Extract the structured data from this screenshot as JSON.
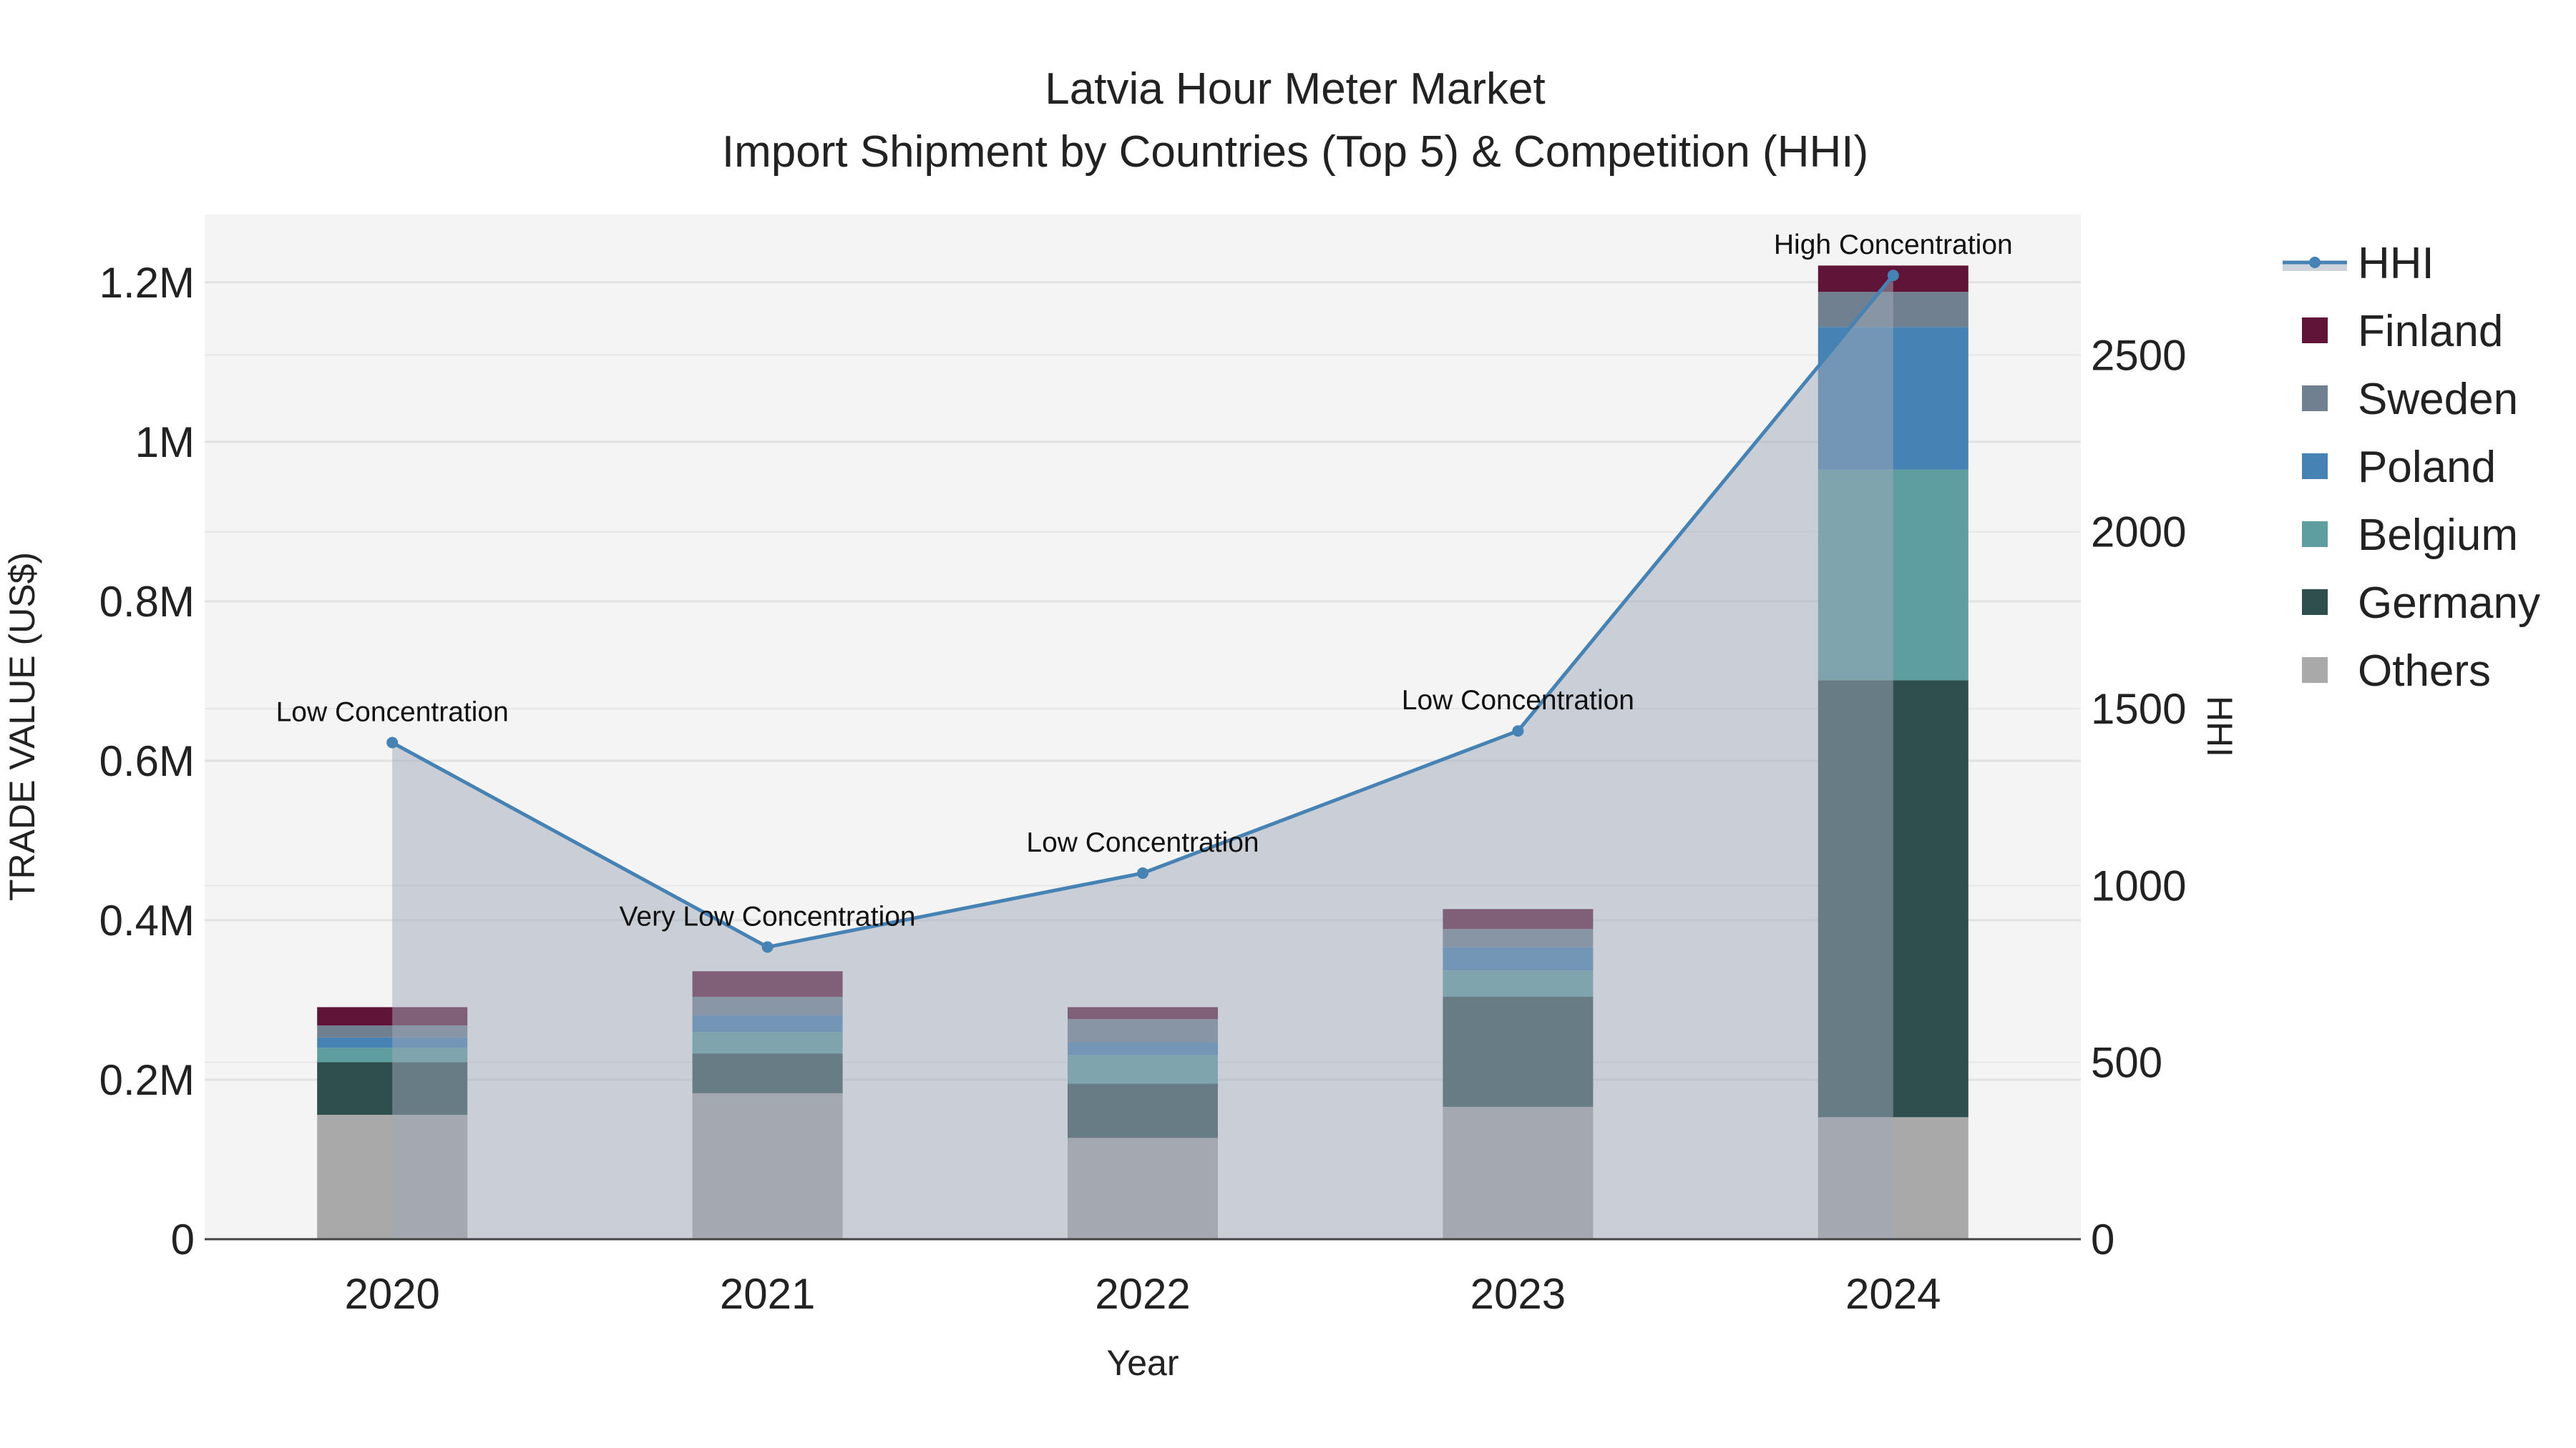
{
  "chart_data": {
    "type": "bar",
    "title": "Latvia Hour Meter Market",
    "subtitle": "Import Shipment by Countries (Top 5) & Competition (HHI)",
    "xlabel": "Year",
    "ylabel": "TRADE VALUE (US$)",
    "y2label": "HHI",
    "categories": [
      "2020",
      "2021",
      "2022",
      "2023",
      "2024"
    ],
    "ylim": [
      0,
      1285000
    ],
    "y2lim": [
      0,
      2897
    ],
    "yticks": [
      0,
      200000,
      400000,
      600000,
      800000,
      1000000,
      1200000
    ],
    "ytick_labels": [
      "0",
      "0.2M",
      "0.4M",
      "0.6M",
      "0.8M",
      "1M",
      "1.2M"
    ],
    "y2ticks": [
      0,
      500,
      1000,
      1500,
      2000,
      2500
    ],
    "y2tick_labels": [
      "0",
      "500",
      "1000",
      "1500",
      "2000",
      "2500"
    ],
    "grid": true,
    "legend_position": "right",
    "series": [
      {
        "name": "Others",
        "color": "#a9a9a9",
        "values": [
          156000,
          183000,
          127000,
          166000,
          153000
        ]
      },
      {
        "name": "Germany",
        "color": "#2f4f4f",
        "values": [
          66000,
          50000,
          68000,
          138000,
          548000
        ]
      },
      {
        "name": "Belgium",
        "color": "#5f9ea0",
        "values": [
          18000,
          27000,
          36000,
          33000,
          264000
        ]
      },
      {
        "name": "Poland",
        "color": "#4682b4",
        "values": [
          13000,
          21000,
          16000,
          29000,
          179000
        ]
      },
      {
        "name": "Sweden",
        "color": "#708090",
        "values": [
          15000,
          23000,
          29000,
          23000,
          44000
        ]
      },
      {
        "name": "Finland",
        "color": "#601438",
        "values": [
          23000,
          32000,
          15000,
          25000,
          33000
        ]
      }
    ],
    "hhi": {
      "name": "HHI",
      "color": "#4682b4",
      "values": [
        1404,
        826,
        1035,
        1437,
        2725
      ],
      "annotations": [
        "Low Concentration",
        "Very Low Concentration",
        "Low Concentration",
        "Low Concentration",
        "High Concentration"
      ]
    },
    "legend_order": [
      "HHI",
      "Finland",
      "Sweden",
      "Poland",
      "Belgium",
      "Germany",
      "Others"
    ]
  }
}
